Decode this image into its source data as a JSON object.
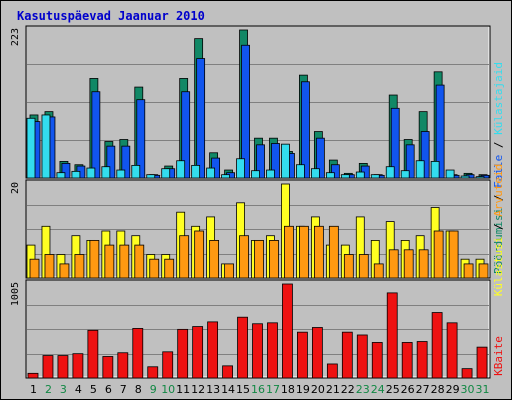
{
  "chart_data": {
    "type": "bar",
    "title": "Kasutuspäevad Jaanuar 2010",
    "categories": [
      "1",
      "2",
      "3",
      "4",
      "5",
      "6",
      "7",
      "8",
      "9",
      "10",
      "11",
      "12",
      "13",
      "14",
      "15",
      "16",
      "17",
      "18",
      "19",
      "20",
      "21",
      "22",
      "23",
      "24",
      "25",
      "26",
      "27",
      "28",
      "29",
      "30",
      "31"
    ],
    "weekend_days": [
      "2",
      "3",
      "9",
      "10",
      "16",
      "17",
      "23",
      "24",
      "30",
      "31"
    ],
    "colors": {
      "pooordumisi": "#118866",
      "faile": "#1155ee",
      "kulastajaid": "#33ddee",
      "kulastusi": "#ffff22",
      "arvuteid": "#ff9911",
      "kbaite": "#ee1111",
      "weekday_label": "#000000",
      "weekend_label": "#118844",
      "title": "#0000cc"
    },
    "panels": [
      {
        "name": "top",
        "ymax_label": "223",
        "ymax": 223,
        "series": [
          {
            "key": "pooordumisi",
            "values": [
              95,
              100,
              25,
              20,
              150,
              55,
              58,
              137,
              5,
              18,
              150,
              210,
              38,
              12,
              223,
              60,
              60,
              40,
              155,
              70,
              27,
              7,
              22,
              5,
              125,
              58,
              100,
              160,
              5,
              7,
              5
            ]
          },
          {
            "key": "faile",
            "values": [
              85,
              92,
              22,
              18,
              130,
              48,
              48,
              118,
              4,
              14,
              130,
              180,
              30,
              8,
              200,
              50,
              52,
              37,
              145,
              60,
              20,
              5,
              18,
              4,
              105,
              50,
              70,
              140,
              4,
              5,
              4
            ]
          },
          {
            "key": "kulastajaid",
            "values": [
              90,
              95,
              8,
              10,
              15,
              17,
              12,
              19,
              5,
              14,
              26,
              19,
              15,
              5,
              29,
              11,
              12,
              51,
              20,
              14,
              8,
              5,
              9,
              5,
              17,
              11,
              26,
              25,
              12,
              3,
              2
            ]
          }
        ]
      },
      {
        "name": "middle",
        "ymax_label": "20",
        "ymax": 20,
        "series": [
          {
            "key": "kulastusi",
            "values": [
              7,
              11,
              5,
              9,
              8,
              10,
              10,
              9,
              5,
              5,
              14,
              11,
              13,
              3,
              16,
              8,
              9,
              20,
              11,
              13,
              7,
              7,
              13,
              8,
              12,
              8,
              9,
              15,
              10,
              4,
              4
            ]
          },
          {
            "key": "arvuteid",
            "values": [
              4,
              5,
              3,
              5,
              8,
              7,
              7,
              7,
              4,
              4,
              9,
              10,
              8,
              3,
              9,
              8,
              8,
              11,
              11,
              11,
              11,
              5,
              5,
              3,
              6,
              6,
              6,
              10,
              10,
              3,
              3
            ]
          }
        ]
      },
      {
        "name": "bottom",
        "ymax_label": "1005",
        "ymax": 1005,
        "series": [
          {
            "key": "kbaite",
            "values": [
              50,
              240,
              240,
              260,
              510,
              230,
              270,
              530,
              120,
              280,
              520,
              550,
              600,
              130,
              650,
              580,
              590,
              1005,
              490,
              540,
              150,
              490,
              460,
              380,
              910,
              380,
              390,
              700,
              590,
              100,
              330
            ]
          }
        ]
      }
    ],
    "legend_right_top": [
      {
        "key": "pooordumisi",
        "text": "Pöördumisi"
      },
      {
        "sep": "/"
      },
      {
        "key": "faile",
        "text": "Faile"
      },
      {
        "sep": "/"
      },
      {
        "key": "kulastajaid",
        "text": "Külastajaid"
      }
    ],
    "legend_right_middle": [
      {
        "key": "kulastusi",
        "text": "Külastusi"
      },
      {
        "sep": "/"
      },
      {
        "key": "arvuteid",
        "text": "Arvuteid"
      }
    ],
    "legend_right_bottom": [
      {
        "key": "kbaite",
        "text": "KBaite"
      }
    ]
  }
}
